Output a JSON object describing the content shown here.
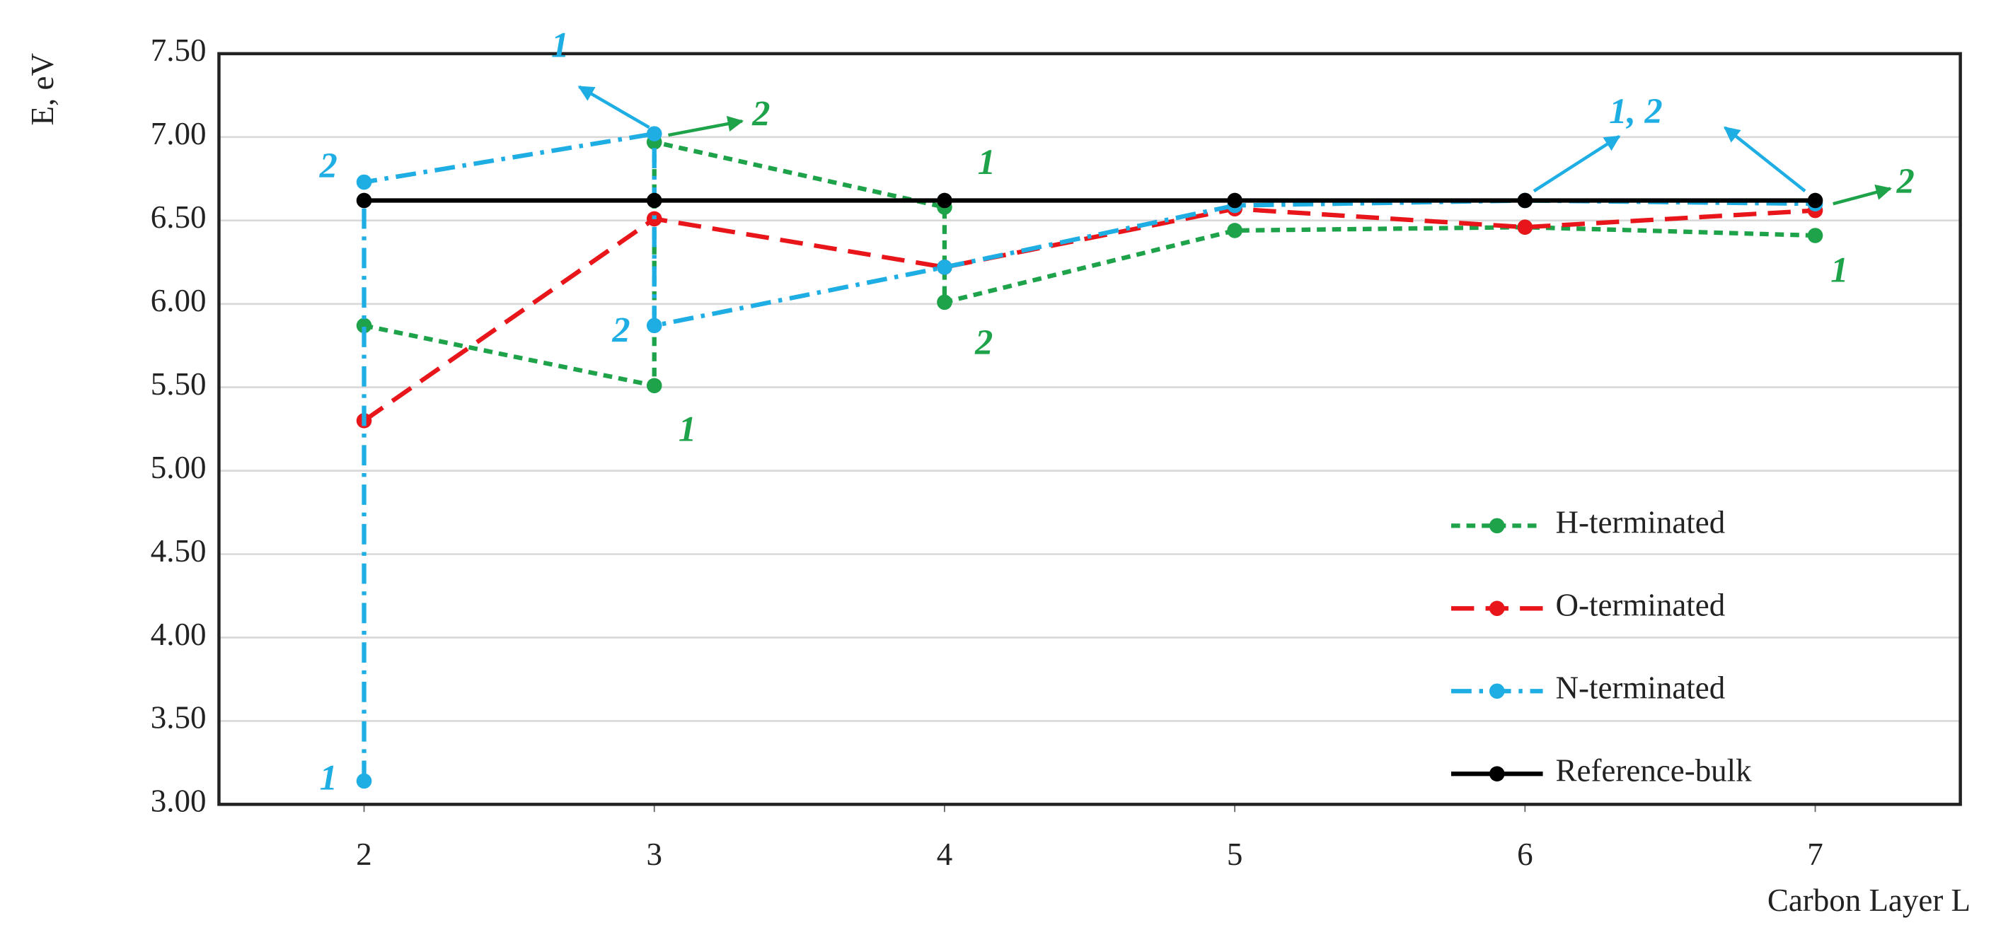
{
  "chart_data": {
    "type": "line",
    "y_label": "E, eV",
    "x_label": "Carbon Layer L",
    "xlim": [
      1.5,
      7.5
    ],
    "xticks": [
      2,
      3,
      4,
      5,
      6,
      7
    ],
    "ylim": [
      3,
      7.5
    ],
    "yticks": [
      {
        "value": 3,
        "label": "3.00"
      },
      {
        "value": 3.5,
        "label": "3.50"
      },
      {
        "value": 4,
        "label": "4.00"
      },
      {
        "value": 4.5,
        "label": "4.50"
      },
      {
        "value": 5,
        "label": "5.00"
      },
      {
        "value": 5.5,
        "label": "5.50"
      },
      {
        "value": 6,
        "label": "6.00"
      },
      {
        "value": 6.5,
        "label": "6.50"
      },
      {
        "value": 7,
        "label": "7.00"
      },
      {
        "value": 7.5,
        "label": "7.50"
      }
    ],
    "grid": true,
    "legend": "lower right",
    "series": [
      {
        "name": "H-terminated",
        "color": "#1ea34a",
        "linestyle": "dashed",
        "x": [
          2,
          3,
          3,
          4,
          4,
          5,
          6,
          7
        ],
        "values": [
          5.87,
          5.51,
          6.97,
          6.58,
          6.01,
          6.44,
          6.46,
          6.41
        ]
      },
      {
        "name": "O-terminated",
        "color": "#e8161b",
        "linestyle": "longdash",
        "x": [
          2,
          3,
          4,
          5,
          6,
          7
        ],
        "values": [
          5.3,
          6.51,
          6.22,
          6.57,
          6.46,
          6.56
        ]
      },
      {
        "name": "N-terminated",
        "color": "#1eaee4",
        "linestyle": "dashdot",
        "x": [
          2,
          2,
          3,
          3,
          4,
          5,
          6,
          7
        ],
        "values": [
          3.14,
          6.73,
          7.02,
          5.87,
          6.22,
          6.59,
          6.62,
          6.6
        ]
      },
      {
        "name": "Reference-bulk",
        "color": "#000000",
        "linestyle": "solid",
        "x": [
          2,
          3,
          4,
          5,
          6,
          7
        ],
        "values": [
          6.62,
          6.62,
          6.62,
          6.62,
          6.62,
          6.62
        ]
      }
    ],
    "annotations": [
      {
        "text": "1",
        "color": "#1eaee4"
      },
      {
        "text": "2",
        "color": "#1ea34a"
      },
      {
        "text": "2",
        "color": "#1eaee4"
      },
      {
        "text": "1",
        "color": "#1ea34a"
      },
      {
        "text": "2",
        "color": "#1eaee4"
      },
      {
        "text": "2",
        "color": "#1ea34a"
      },
      {
        "text": "1",
        "color": "#1ea34a"
      },
      {
        "text": "1",
        "color": "#1eaee4"
      },
      {
        "text": "1, 2",
        "color": "#1eaee4"
      },
      {
        "text": "2",
        "color": "#1ea34a"
      },
      {
        "text": "1",
        "color": "#1ea34a"
      }
    ]
  }
}
